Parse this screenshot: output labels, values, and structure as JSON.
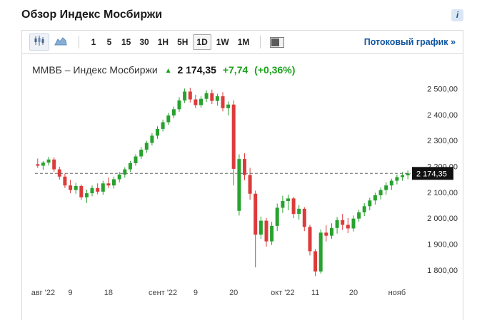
{
  "page": {
    "title": "Обзор Индекс Мосбиржи"
  },
  "info": {
    "glyph": "i"
  },
  "toolbar": {
    "chart_types": [
      {
        "name": "candlestick",
        "selected": true
      },
      {
        "name": "area",
        "selected": false
      }
    ],
    "intervals": [
      {
        "label": "1",
        "selected": false
      },
      {
        "label": "5",
        "selected": false
      },
      {
        "label": "15",
        "selected": false
      },
      {
        "label": "30",
        "selected": false
      },
      {
        "label": "1H",
        "selected": false
      },
      {
        "label": "5H",
        "selected": false
      },
      {
        "label": "1D",
        "selected": true
      },
      {
        "label": "1W",
        "selected": false
      },
      {
        "label": "1M",
        "selected": false
      }
    ],
    "stream_link": "Потоковый график »"
  },
  "quote": {
    "name": "ММВБ – Индекс Мосбиржи",
    "arrow": "▲",
    "last": "2 174,35",
    "change": "+7,74",
    "change_pct": "(+0,36%)"
  },
  "chart_data": {
    "type": "candlestick",
    "title": "ММВБ – Индекс Мосбиржи",
    "last_price": 2174.35,
    "last_price_label": "2 174,35",
    "up_color": "#27a22e",
    "down_color": "#dd3b3b",
    "grid": false,
    "legend": false,
    "ylim": [
      1760,
      2530
    ],
    "y_ticks": [
      2500,
      2400,
      2300,
      2200,
      2100,
      2000,
      1900,
      1800
    ],
    "y_tick_labels": [
      "2 500,00",
      "2 400,00",
      "2 300,00",
      "2 200,00",
      "2 100,00",
      "2 000,00",
      "1 900,00",
      "1 800,00"
    ],
    "x_axis_labels": [
      {
        "label": "авг '22",
        "index": 1
      },
      {
        "label": "9",
        "index": 6
      },
      {
        "label": "18",
        "index": 13
      },
      {
        "label": "сент '22",
        "index": 23
      },
      {
        "label": "9",
        "index": 29
      },
      {
        "label": "20",
        "index": 36
      },
      {
        "label": "окт '22",
        "index": 45
      },
      {
        "label": "11",
        "index": 51
      },
      {
        "label": "20",
        "index": 58
      },
      {
        "label": "нояб",
        "index": 66
      }
    ],
    "candles": [
      [
        2210,
        2232,
        2196,
        2204
      ],
      [
        2204,
        2222,
        2188,
        2216
      ],
      [
        2216,
        2238,
        2205,
        2228
      ],
      [
        2228,
        2236,
        2180,
        2190
      ],
      [
        2190,
        2200,
        2150,
        2162
      ],
      [
        2162,
        2174,
        2118,
        2128
      ],
      [
        2128,
        2150,
        2098,
        2110
      ],
      [
        2110,
        2138,
        2096,
        2126
      ],
      [
        2126,
        2132,
        2072,
        2082
      ],
      [
        2082,
        2112,
        2060,
        2098
      ],
      [
        2098,
        2128,
        2086,
        2118
      ],
      [
        2118,
        2136,
        2094,
        2104
      ],
      [
        2104,
        2146,
        2092,
        2136
      ],
      [
        2136,
        2158,
        2118,
        2128
      ],
      [
        2128,
        2162,
        2116,
        2152
      ],
      [
        2152,
        2180,
        2140,
        2170
      ],
      [
        2170,
        2198,
        2158,
        2190
      ],
      [
        2190,
        2222,
        2180,
        2214
      ],
      [
        2214,
        2248,
        2204,
        2240
      ],
      [
        2240,
        2276,
        2230,
        2266
      ],
      [
        2266,
        2300,
        2254,
        2292
      ],
      [
        2292,
        2330,
        2282,
        2320
      ],
      [
        2320,
        2356,
        2308,
        2346
      ],
      [
        2346,
        2382,
        2336,
        2372
      ],
      [
        2372,
        2408,
        2362,
        2398
      ],
      [
        2398,
        2432,
        2388,
        2422
      ],
      [
        2422,
        2468,
        2412,
        2456
      ],
      [
        2456,
        2502,
        2446,
        2490
      ],
      [
        2490,
        2505,
        2448,
        2460
      ],
      [
        2460,
        2478,
        2426,
        2438
      ],
      [
        2438,
        2472,
        2428,
        2462
      ],
      [
        2462,
        2495,
        2450,
        2484
      ],
      [
        2484,
        2498,
        2442,
        2454
      ],
      [
        2454,
        2482,
        2436,
        2472
      ],
      [
        2472,
        2488,
        2414,
        2426
      ],
      [
        2426,
        2452,
        2398,
        2440
      ],
      [
        2440,
        2456,
        2128,
        2192
      ],
      [
        2030,
        2248,
        2012,
        2230
      ],
      [
        2230,
        2252,
        2148,
        2168
      ],
      [
        2168,
        2196,
        2072,
        2096
      ],
      [
        2096,
        2108,
        1812,
        1938
      ],
      [
        1938,
        2008,
        1922,
        1992
      ],
      [
        1992,
        2002,
        1892,
        1912
      ],
      [
        1912,
        1988,
        1898,
        1972
      ],
      [
        1972,
        2058,
        1952,
        2042
      ],
      [
        2042,
        2088,
        2022,
        2068
      ],
      [
        2068,
        2092,
        2032,
        2078
      ],
      [
        2078,
        2084,
        2002,
        2018
      ],
      [
        2018,
        2052,
        1996,
        2038
      ],
      [
        2038,
        2044,
        1952,
        1968
      ],
      [
        1968,
        1976,
        1858,
        1874
      ],
      [
        1874,
        1882,
        1778,
        1796
      ],
      [
        1796,
        1958,
        1788,
        1946
      ],
      [
        1946,
        1974,
        1912,
        1934
      ],
      [
        1934,
        1982,
        1922,
        1964
      ],
      [
        1964,
        2006,
        1942,
        1994
      ],
      [
        1994,
        2018,
        1956,
        1976
      ],
      [
        1976,
        2002,
        1944,
        1962
      ],
      [
        1962,
        2012,
        1950,
        2000
      ],
      [
        2000,
        2034,
        1988,
        2024
      ],
      [
        2024,
        2060,
        2010,
        2048
      ],
      [
        2048,
        2080,
        2032,
        2070
      ],
      [
        2070,
        2100,
        2054,
        2090
      ],
      [
        2090,
        2120,
        2074,
        2110
      ],
      [
        2110,
        2140,
        2092,
        2128
      ],
      [
        2128,
        2154,
        2110,
        2146
      ],
      [
        2146,
        2170,
        2132,
        2160
      ],
      [
        2160,
        2180,
        2146,
        2167
      ],
      [
        2167,
        2186,
        2152,
        2174.35
      ]
    ]
  }
}
